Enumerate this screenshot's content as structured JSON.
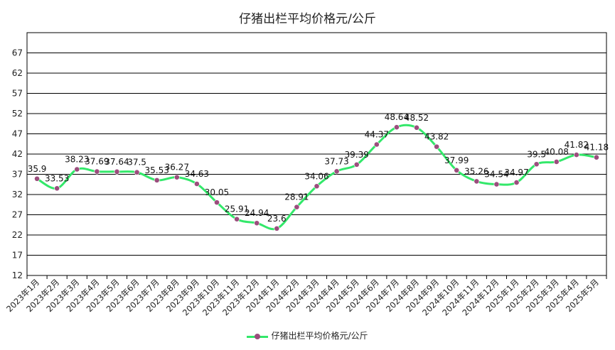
{
  "chart_data": {
    "type": "line",
    "title": "仔猪出栏平均价格元/公斤",
    "categories": [
      "2023年1月",
      "2023年2月",
      "2023年3月",
      "2023年4月",
      "2023年5月",
      "2023年6月",
      "2023年7月",
      "2023年8月",
      "2023年9月",
      "2023年10月",
      "2023年11月",
      "2023年12月",
      "2024年1月",
      "2024年2月",
      "2024年3月",
      "2024年4月",
      "2024年5月",
      "2024年6月",
      "2024年7月",
      "2024年8月",
      "2024年9月",
      "2024年10月",
      "2024年11月",
      "2024年12月",
      "2025年1月",
      "2025年2月",
      "2025年3月",
      "2025年4月",
      "2025年5月"
    ],
    "series": [
      {
        "name": "仔猪出栏平均价格元/公斤",
        "values": [
          35.9,
          33.53,
          38.23,
          37.69,
          37.64,
          37.5,
          35.53,
          36.27,
          34.63,
          30.05,
          25.91,
          24.94,
          23.6,
          28.91,
          34.06,
          37.73,
          39.39,
          44.37,
          48.64,
          48.52,
          43.82,
          37.99,
          35.26,
          34.54,
          34.97,
          39.5,
          40.08,
          41.82,
          41.18
        ],
        "labels": [
          "35.9",
          "33.53",
          "38.23",
          "37.69",
          "37.64",
          "37.5",
          "35.53",
          "36.27",
          "34.63",
          "30.05",
          "25.91",
          "24.94",
          "23.6",
          "28.91",
          "34.06",
          "37.73",
          "39.39",
          "44.37",
          "48.64",
          "48.52",
          "43.82",
          "37.99",
          "35.26",
          "34.54",
          "34.97",
          "39.5",
          "40.08",
          "41.82",
          "41.18"
        ]
      }
    ],
    "yticks": [
      12,
      17,
      22,
      27,
      32,
      37,
      42,
      47,
      52,
      57,
      62,
      67
    ],
    "ylim": [
      12,
      72
    ],
    "grid": true,
    "legend": "bottom",
    "colors": {
      "line": "#33e86a",
      "marker": "#9b4d7d"
    }
  }
}
